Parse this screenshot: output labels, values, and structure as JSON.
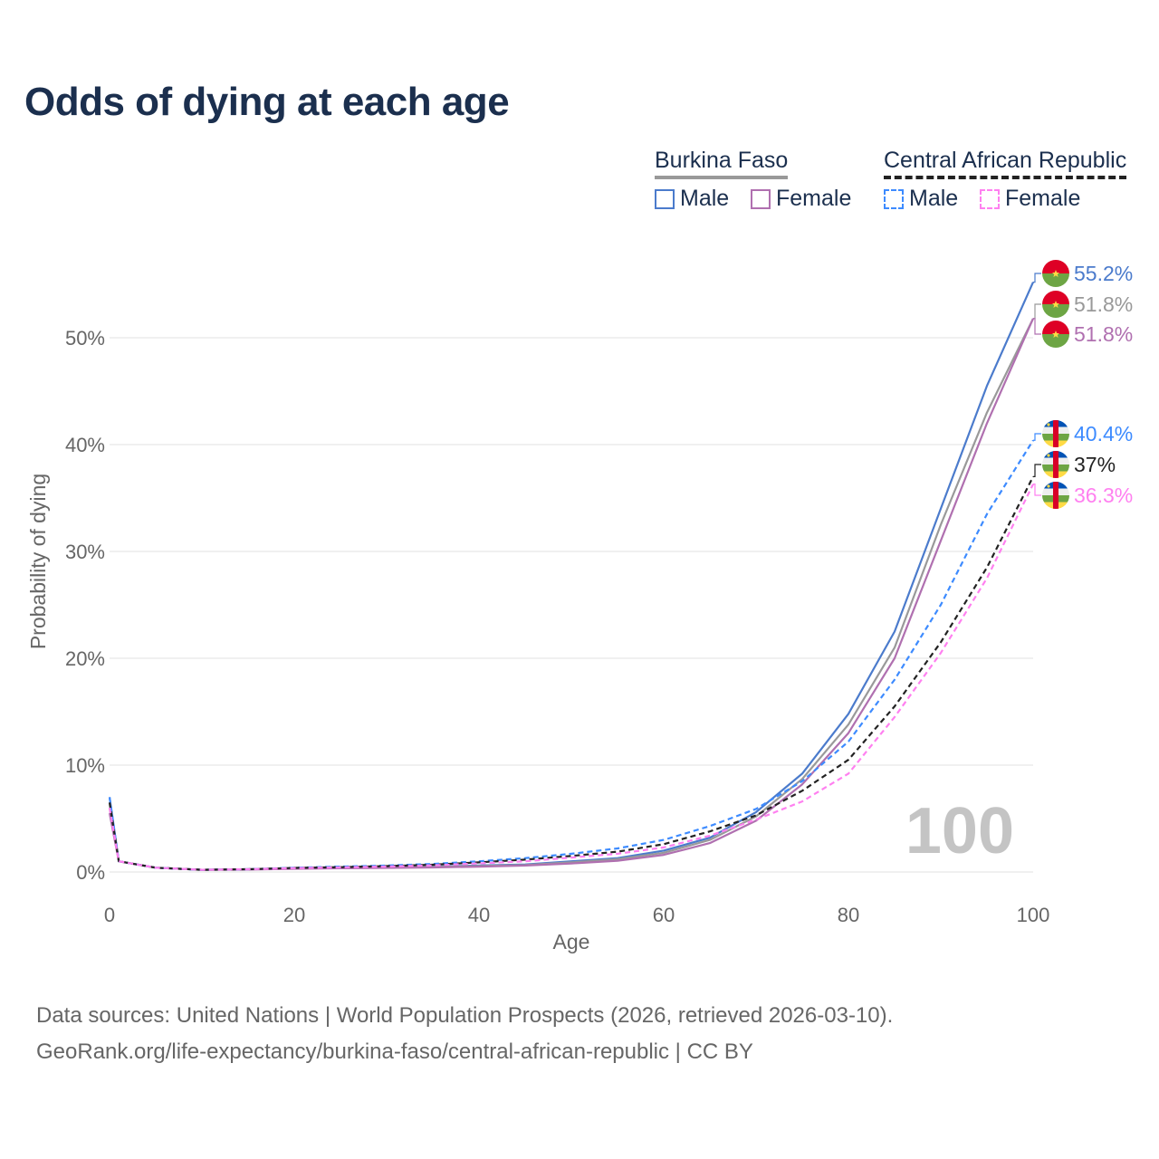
{
  "title": "Odds of dying at each age",
  "legend": {
    "countries": [
      {
        "name": "Burkina Faso",
        "color": "#999999",
        "dashed": false
      },
      {
        "name": "Central African Republic",
        "color": "#222222",
        "dashed": true
      }
    ],
    "items": [
      {
        "label": "Male",
        "color": "#4b7bcc",
        "dashed": false
      },
      {
        "label": "Female",
        "color": "#b070b0",
        "dashed": false
      },
      {
        "label": "Male",
        "color": "#3d8bff",
        "dashed": true
      },
      {
        "label": "Female",
        "color": "#ff80f0",
        "dashed": true
      }
    ]
  },
  "watermark": "100",
  "source_line1": "Data sources: United Nations | World Population Prospects (2026, retrieved 2026-03-10).",
  "source_line2": "GeoRank.org/life-expectancy/burkina-faso/central-african-republic | CC BY",
  "chart_data": {
    "type": "line",
    "xlabel": "Age",
    "ylabel": "Probability of dying",
    "xlim": [
      0,
      100
    ],
    "ylim": [
      0,
      55
    ],
    "xticks": [
      "0",
      "20",
      "40",
      "60",
      "80",
      "100"
    ],
    "xtick_values": [
      0,
      20,
      40,
      60,
      80,
      100
    ],
    "yticks": [
      "0%",
      "10%",
      "20%",
      "30%",
      "40%",
      "50%"
    ],
    "ytick_values": [
      0,
      10,
      20,
      30,
      40,
      50
    ],
    "grid": true,
    "x": [
      0,
      1,
      5,
      10,
      15,
      20,
      25,
      30,
      35,
      40,
      45,
      50,
      55,
      60,
      65,
      70,
      75,
      80,
      85,
      90,
      95,
      100
    ],
    "series": [
      {
        "name": "Burkina Faso Male",
        "color": "#4b7bcc",
        "dashed": false,
        "flag": "bf",
        "end_label": "55.2%",
        "values": [
          7.0,
          1.0,
          0.4,
          0.2,
          0.25,
          0.35,
          0.4,
          0.45,
          0.5,
          0.6,
          0.7,
          1.0,
          1.3,
          2.0,
          3.2,
          5.6,
          9.2,
          14.8,
          22.5,
          34,
          45.5,
          55.2
        ]
      },
      {
        "name": "Burkina Faso",
        "color": "#999999",
        "dashed": false,
        "flag": "bf",
        "end_label": "51.8%",
        "values": [
          6.0,
          1.0,
          0.4,
          0.2,
          0.25,
          0.33,
          0.38,
          0.42,
          0.47,
          0.55,
          0.65,
          0.9,
          1.2,
          1.8,
          3.0,
          5.2,
          8.7,
          13.8,
          21,
          32.5,
          43,
          51.8
        ]
      },
      {
        "name": "Burkina Faso Female",
        "color": "#b070b0",
        "dashed": false,
        "flag": "bf",
        "end_label": "51.8%",
        "values": [
          5.5,
          1.0,
          0.4,
          0.2,
          0.22,
          0.3,
          0.35,
          0.38,
          0.42,
          0.5,
          0.6,
          0.8,
          1.05,
          1.6,
          2.7,
          4.8,
          8.2,
          13,
          20,
          31,
          42,
          51.8
        ]
      },
      {
        "name": "Central African Republic Male",
        "color": "#3d8bff",
        "dashed": true,
        "flag": "cf",
        "end_label": "40.4%",
        "values": [
          7.0,
          1.0,
          0.4,
          0.2,
          0.25,
          0.4,
          0.5,
          0.6,
          0.75,
          1.0,
          1.3,
          1.7,
          2.2,
          3.0,
          4.3,
          5.9,
          8.5,
          12.2,
          18,
          25,
          33.5,
          40.4
        ]
      },
      {
        "name": "Central African Republic",
        "color": "#222222",
        "dashed": true,
        "flag": "cf",
        "end_label": "37%",
        "values": [
          6.5,
          1.0,
          0.4,
          0.2,
          0.25,
          0.38,
          0.45,
          0.55,
          0.68,
          0.9,
          1.15,
          1.5,
          1.9,
          2.6,
          3.8,
          5.3,
          7.6,
          10.5,
          15.5,
          21.5,
          28.5,
          37
        ]
      },
      {
        "name": "Central African Republic Female",
        "color": "#ff80f0",
        "dashed": true,
        "flag": "cf",
        "end_label": "36.3%",
        "values": [
          6.0,
          1.0,
          0.4,
          0.2,
          0.25,
          0.36,
          0.42,
          0.5,
          0.62,
          0.8,
          1.0,
          1.35,
          1.7,
          2.3,
          3.4,
          4.9,
          6.6,
          9.2,
          14.5,
          20.5,
          27.5,
          36.3
        ]
      }
    ]
  }
}
